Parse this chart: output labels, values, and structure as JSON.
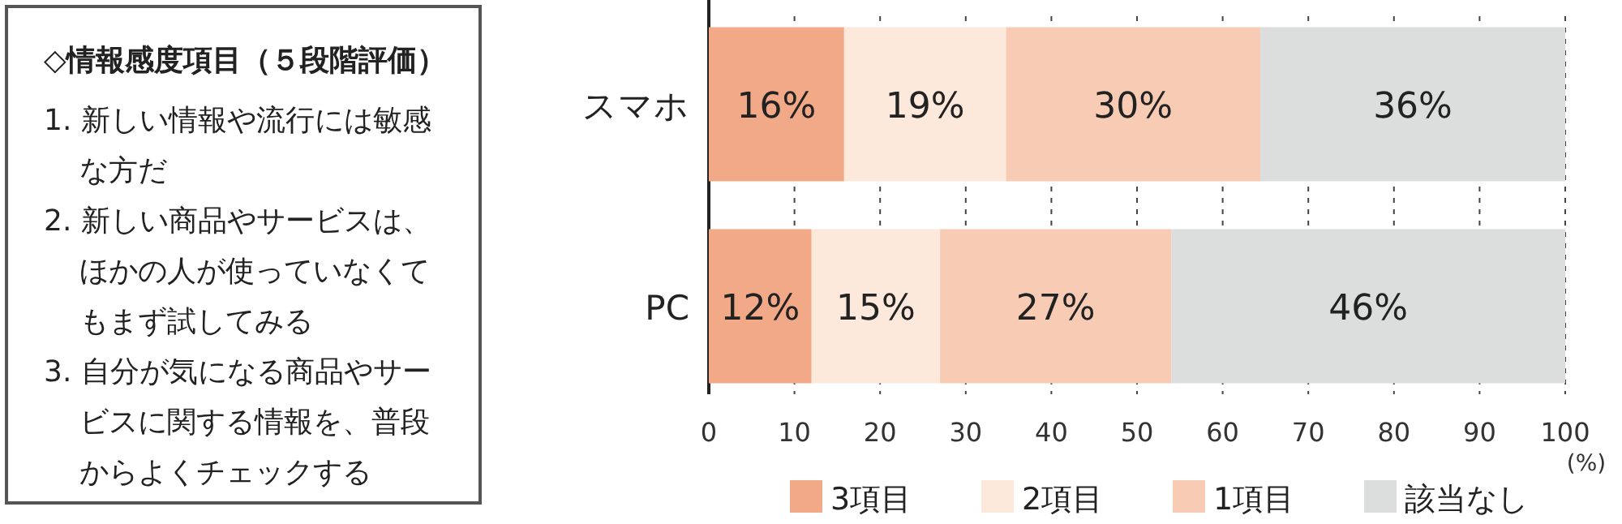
{
  "chart_data": {
    "type": "bar",
    "orientation": "horizontal",
    "stacked": true,
    "categories": [
      "スマホ",
      "PC"
    ],
    "series": [
      {
        "name": "3項目",
        "color": "#f2a987",
        "values": [
          15.8,
          12
        ],
        "value_labels": [
          "16%",
          "12%"
        ]
      },
      {
        "name": "2項目",
        "color": "#fde8dc",
        "values": [
          18.9,
          15
        ],
        "value_labels": [
          "19%",
          "15%"
        ]
      },
      {
        "name": "1項目",
        "color": "#f8cbb4",
        "values": [
          29.7,
          27
        ],
        "value_labels": [
          "30%",
          "27%"
        ]
      },
      {
        "name": "該当なし",
        "color": "#dcdedd",
        "values": [
          35.6,
          46
        ],
        "value_labels": [
          "36%",
          "46%"
        ]
      }
    ],
    "xlim": [
      0,
      100
    ],
    "xticks": [
      0,
      10,
      20,
      30,
      40,
      50,
      60,
      70,
      80,
      90,
      100
    ],
    "xlabel": "(%)",
    "grid": "x",
    "legend": "bottom",
    "annotations": [
      "◇情報感度項目（５段階評価）",
      "1. 新しい情報や流行には敏感な方だ",
      "2. 新しい商品やサービスは、ほかの人が使っていなくてもまず試してみる",
      "3. 自分が気になる商品やサービスに関する情報を、普段からよくチェックする"
    ]
  }
}
